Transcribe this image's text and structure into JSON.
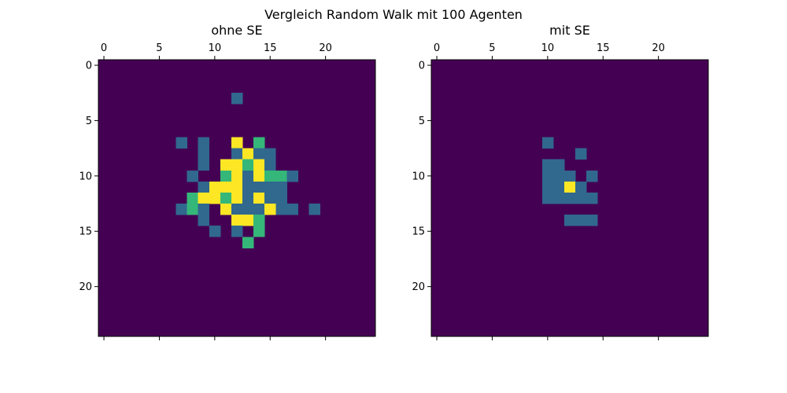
{
  "figure": {
    "suptitle": "Vergleich Random Walk mit 100 Agenten"
  },
  "colors": {
    "background": "#ffffff",
    "levels": [
      "#440154",
      "#31688e",
      "#35b779",
      "#fde725"
    ]
  },
  "chart_data": [
    {
      "type": "heatmap",
      "title": "ohne SE",
      "colormap": "viridis",
      "x_range": [
        -0.5,
        24.5
      ],
      "y_range": [
        -0.5,
        24.5
      ],
      "y_inverted": true,
      "x_ticks": [
        0,
        5,
        10,
        15,
        20
      ],
      "x_tick_labels": [
        "0",
        "5",
        "10",
        "15",
        "20"
      ],
      "x_tick_position": "top",
      "y_ticks": [
        0,
        5,
        10,
        15,
        20
      ],
      "y_tick_labels": [
        "0",
        "5",
        "10",
        "15",
        "20"
      ],
      "grid": false,
      "rows": [
        "0000000000000000000000000",
        "0000000000000000000000000",
        "0000000000000000000000000",
        "0000000000001000000000000",
        "0000000000000000000000000",
        "0000000000000000000000000",
        "0000000000000000000000000",
        "0000000101003020000000000",
        "0000000001001311000000000",
        "0000000001033231000000000",
        "0000000010023132210000000",
        "0000000001333111100000000",
        "0000000023323131100000000",
        "0000000121031113110100000",
        "0000000001003320000000000",
        "0000000000101020000000000",
        "0000000000000200000000000",
        "0000000000000000000000000",
        "0000000000000000000000000",
        "0000000000000000000000000",
        "0000000000000000000000000",
        "0000000000000000000000000",
        "0000000000000000000000000",
        "0000000000000000000000000",
        "0000000000000000000000000"
      ]
    },
    {
      "type": "heatmap",
      "title": "mit SE",
      "colormap": "viridis",
      "x_range": [
        -0.5,
        24.5
      ],
      "y_range": [
        -0.5,
        24.5
      ],
      "y_inverted": true,
      "x_ticks": [
        0,
        5,
        10,
        15,
        20
      ],
      "x_tick_labels": [
        "0",
        "5",
        "10",
        "15",
        "20"
      ],
      "x_tick_position": "top",
      "y_ticks": [
        0,
        5,
        10,
        15,
        20
      ],
      "y_tick_labels": [
        "0",
        "5",
        "10",
        "15",
        "20"
      ],
      "grid": false,
      "rows": [
        "0000000000000000000000000",
        "0000000000000000000000000",
        "0000000000000000000000000",
        "0000000000000000000000000",
        "0000000000000000000000000",
        "0000000000000000000000000",
        "0000000000000000000000000",
        "0000000000100000000000000",
        "0000000000000100000000000",
        "0000000000110000000000000",
        "0000000000111010000000000",
        "0000000000113100000000000",
        "0000000000111110000000000",
        "0000000000000000000000000",
        "0000000000001110000000000",
        "0000000000000000000000000",
        "0000000000000000000000000",
        "0000000000000000000000000",
        "0000000000000000000000000",
        "0000000000000000000000000",
        "0000000000000000000000000",
        "0000000000000000000000000",
        "0000000000000000000000000",
        "0000000000000000000000000",
        "0000000000000000000000000"
      ]
    }
  ]
}
